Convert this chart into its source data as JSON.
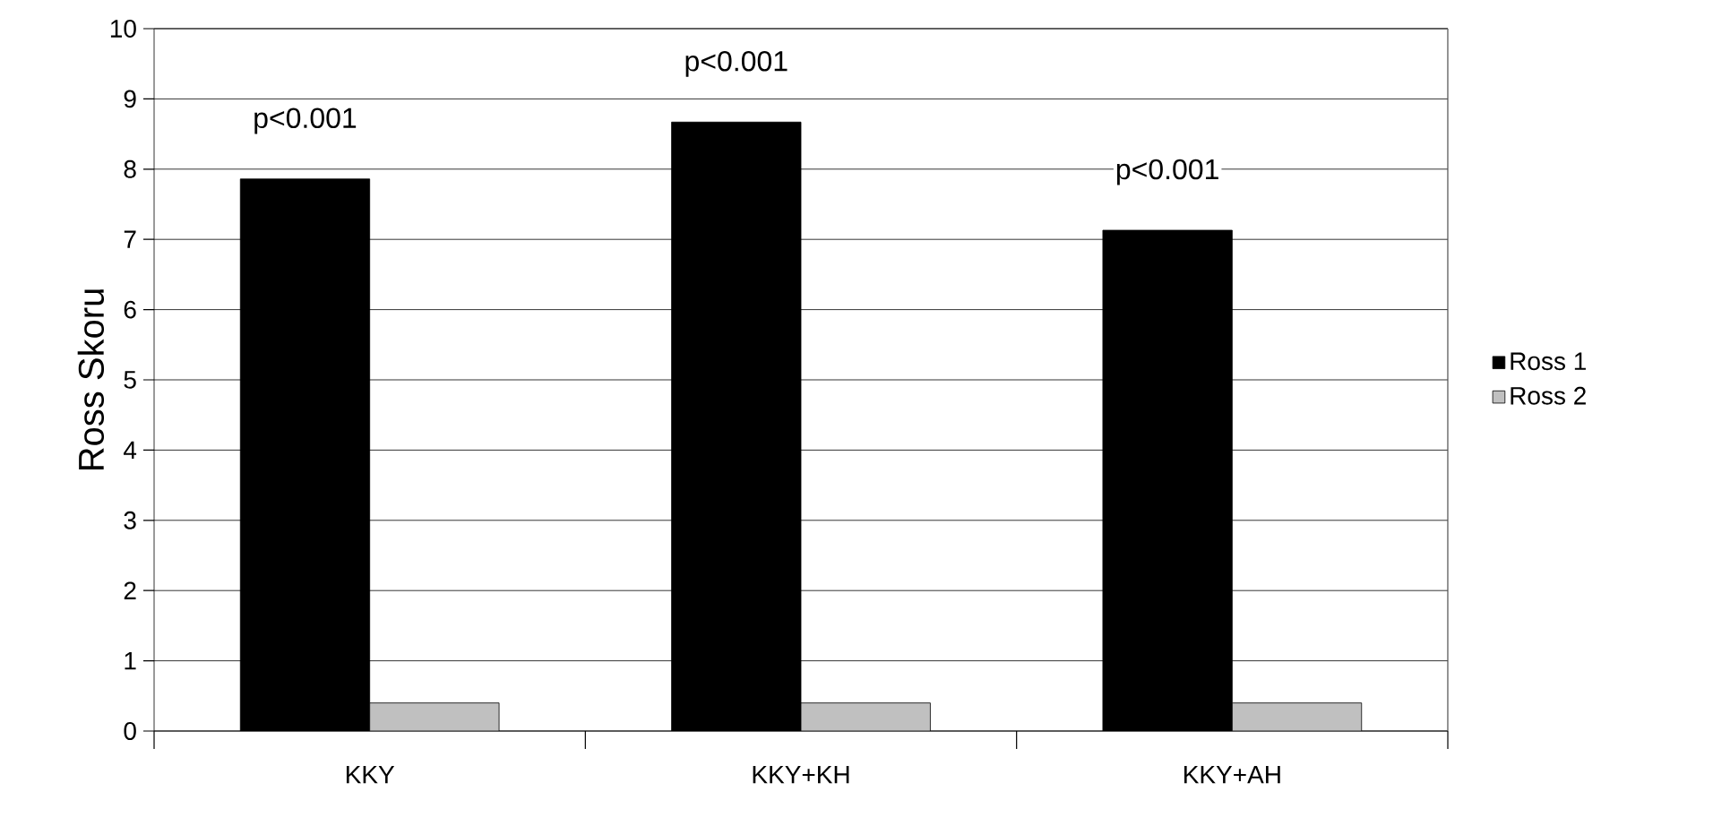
{
  "chart_data": {
    "type": "bar",
    "ylabel": "Ross Skoru",
    "categories": [
      "KKY",
      "KKY+KH",
      "KKY+AH"
    ],
    "series": [
      {
        "name": "Ross 1",
        "color": "#000000",
        "values": [
          7.86,
          8.67,
          7.13
        ]
      },
      {
        "name": "Ross 2",
        "color": "#c0c0c0",
        "values": [
          0.4,
          0.4,
          0.4
        ]
      }
    ],
    "ylim": [
      0,
      10
    ],
    "yticks": [
      0,
      1,
      2,
      3,
      4,
      5,
      6,
      7,
      8,
      9,
      10
    ],
    "grid": "y",
    "legend": "right",
    "annotations": [
      "p<0.001",
      "p<0.001",
      "p<0.001"
    ]
  }
}
